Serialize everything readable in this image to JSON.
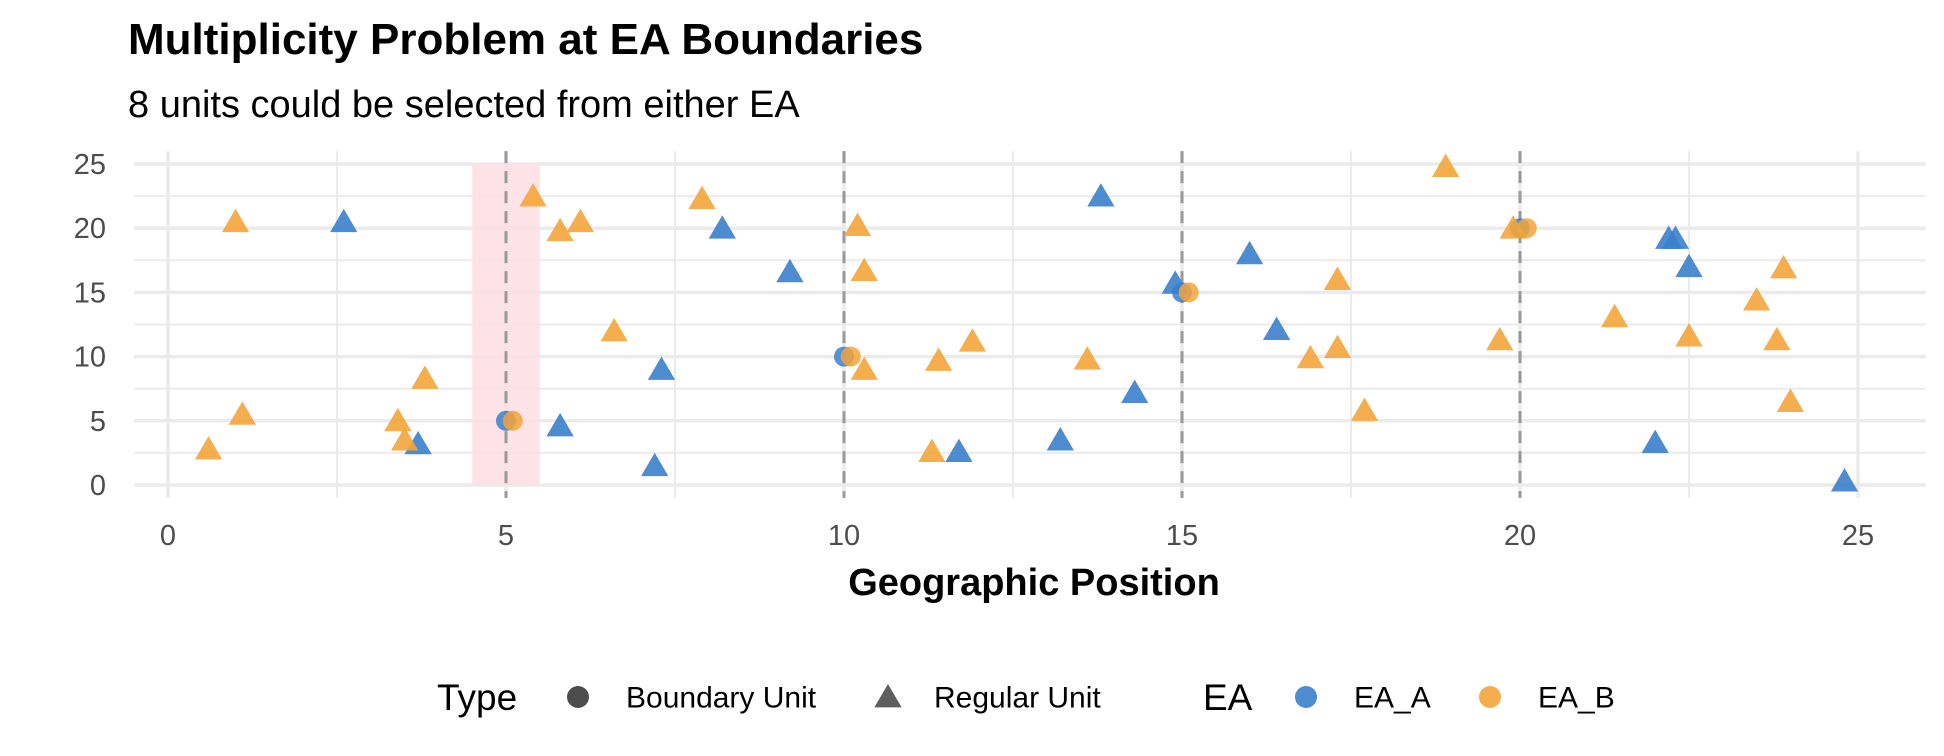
{
  "chart_data": {
    "type": "scatter",
    "title": "Multiplicity Problem at EA Boundaries",
    "subtitle": "8 units could be selected from either EA",
    "xlabel": "Geographic Position",
    "ylabel": "",
    "xlim": [
      -0.5,
      26
    ],
    "ylim": [
      -1,
      26
    ],
    "x_ticks": [
      0,
      5,
      10,
      15,
      20,
      25
    ],
    "y_ticks": [
      0,
      5,
      10,
      15,
      20,
      25
    ],
    "grid": true,
    "boundaries": [
      5,
      10,
      15,
      20
    ],
    "highlight_band": [
      4.5,
      5.5
    ],
    "colors": {
      "EA_A": "#3a7fcb",
      "EA_B": "#f4a53a",
      "highlight": "#fde0e4",
      "boundary_line": "#999999",
      "grid": "#ebebeb"
    },
    "legend": {
      "placement": "bottom",
      "type_title": "Type",
      "type_items": [
        "Boundary Unit",
        "Regular Unit"
      ],
      "ea_title": "EA",
      "ea_items": [
        "EA_A",
        "EA_B"
      ]
    },
    "series": [
      {
        "name": "EA_A",
        "boundary": [
          [
            5.0,
            5
          ],
          [
            10.0,
            10
          ],
          [
            15.0,
            15
          ],
          [
            20.0,
            20
          ]
        ],
        "regular": [
          [
            2.6,
            20.5
          ],
          [
            3.7,
            3.2
          ],
          [
            5.8,
            4.6
          ],
          [
            7.2,
            1.5
          ],
          [
            7.3,
            9.0
          ],
          [
            8.2,
            20.0
          ],
          [
            9.2,
            16.6
          ],
          [
            11.7,
            2.6
          ],
          [
            13.2,
            3.5
          ],
          [
            13.8,
            22.5
          ],
          [
            14.3,
            7.2
          ],
          [
            14.9,
            15.7
          ],
          [
            16.0,
            18.0
          ],
          [
            16.4,
            12.1
          ],
          [
            22.0,
            3.3
          ],
          [
            22.2,
            19.2
          ],
          [
            22.3,
            19.2
          ],
          [
            22.5,
            17.0
          ],
          [
            24.8,
            0.3
          ]
        ]
      },
      {
        "name": "EA_B",
        "boundary": [
          [
            5.1,
            5
          ],
          [
            10.1,
            10
          ],
          [
            15.1,
            15
          ],
          [
            20.1,
            20
          ]
        ],
        "regular": [
          [
            0.6,
            2.8
          ],
          [
            1.0,
            20.5
          ],
          [
            1.1,
            5.5
          ],
          [
            3.4,
            5.0
          ],
          [
            3.5,
            3.5
          ],
          [
            3.8,
            8.3
          ],
          [
            5.4,
            22.5
          ],
          [
            5.8,
            19.8
          ],
          [
            6.1,
            20.5
          ],
          [
            6.6,
            12.0
          ],
          [
            7.9,
            22.3
          ],
          [
            10.2,
            20.2
          ],
          [
            10.3,
            16.7
          ],
          [
            10.3,
            9.0
          ],
          [
            11.3,
            2.6
          ],
          [
            11.4,
            9.7
          ],
          [
            11.9,
            11.2
          ],
          [
            13.6,
            9.8
          ],
          [
            16.9,
            9.9
          ],
          [
            17.3,
            10.7
          ],
          [
            17.3,
            16.0
          ],
          [
            17.7,
            5.8
          ],
          [
            18.9,
            24.8
          ],
          [
            19.7,
            11.3
          ],
          [
            19.9,
            20.0
          ],
          [
            21.4,
            13.1
          ],
          [
            22.5,
            11.6
          ],
          [
            23.5,
            14.4
          ],
          [
            23.8,
            11.3
          ],
          [
            23.9,
            16.9
          ],
          [
            24.0,
            6.5
          ]
        ]
      }
    ]
  }
}
